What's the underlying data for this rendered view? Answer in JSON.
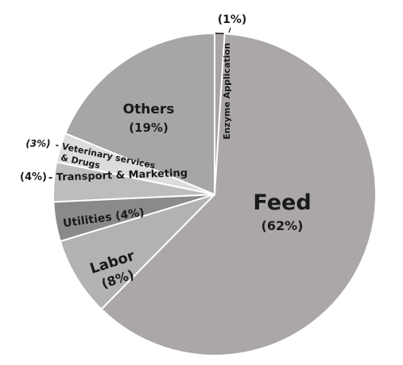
{
  "chart_data": {
    "type": "pie",
    "title": "",
    "start_angle_deg": 0,
    "direction": "clockwise",
    "slices": [
      {
        "name": "Enzyme Application",
        "value": 1,
        "percent_label": "(1%)",
        "color": "#a9a5a5"
      },
      {
        "name": "Feed",
        "value": 62,
        "percent_label": "(62%)",
        "color": "#aba7a7"
      },
      {
        "name": "Labor",
        "value": 8,
        "percent_label": "(8%)",
        "color": "#b2b2b2"
      },
      {
        "name": "Utilities",
        "value": 4,
        "percent_label": "(4%)",
        "color": "#8a8a8a"
      },
      {
        "name": "Transport & Marketing",
        "value": 4,
        "percent_label": "(4%)",
        "color": "#bdbdbd"
      },
      {
        "name": "Veterinary services & Drugs",
        "value": 3,
        "percent_label": "(3%)",
        "color": "#dcdcdc"
      },
      {
        "name": "Others",
        "value": 19,
        "percent_label": "(19%)",
        "color": "#a6a6a6"
      }
    ],
    "label_texts": {
      "enzyme_pct": "(1%)",
      "enzyme_name": "Enzyme Application",
      "feed_name": "Feed",
      "feed_pct": "(62%)",
      "labor_name": "Labor",
      "labor_pct": "(8%)",
      "utilities": "Utilities (4%)",
      "transport_pct": "(4%)",
      "transport_name": "- Transport & Marketing",
      "vet_pct": "(3%)",
      "vet_name_1": "- Veterinary services",
      "vet_name_2": "& Drugs",
      "others_name": "Others",
      "others_pct": "(19%)"
    }
  }
}
